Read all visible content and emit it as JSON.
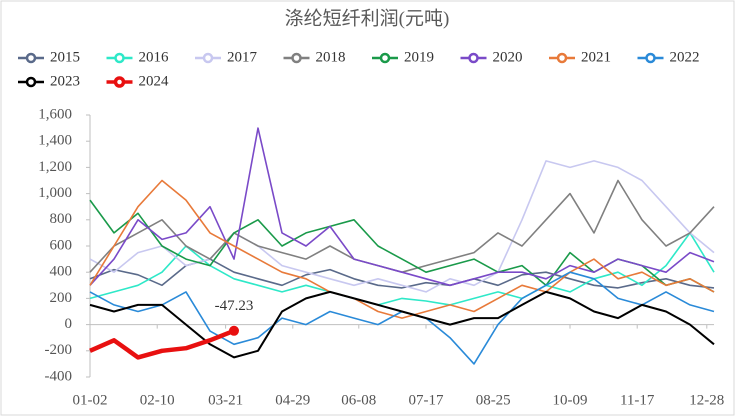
{
  "chart_data": {
    "type": "line",
    "title": "涤纶短纤利润(元吨)",
    "annotation": "-47.23",
    "x": [
      0,
      2,
      4,
      6,
      8,
      10,
      12,
      14,
      16,
      18,
      20,
      22,
      24,
      26,
      28,
      30,
      32,
      34,
      36,
      38,
      40,
      42,
      44,
      46,
      48,
      50,
      52
    ],
    "xlim": [
      0,
      52
    ],
    "xticks": [
      {
        "value": 0,
        "label": "01-02"
      },
      {
        "value": 5.6,
        "label": "02-10"
      },
      {
        "value": 11.3,
        "label": "03-21"
      },
      {
        "value": 16.9,
        "label": "04-29"
      },
      {
        "value": 22.4,
        "label": "06-08"
      },
      {
        "value": 28,
        "label": "07-17"
      },
      {
        "value": 33.6,
        "label": "08-25"
      },
      {
        "value": 40,
        "label": "10-09"
      },
      {
        "value": 45.6,
        "label": "11-17"
      },
      {
        "value": 51.4,
        "label": "12-28"
      }
    ],
    "ylim": [
      -400,
      1600
    ],
    "yticks": [
      {
        "value": 1600,
        "label": "1,600"
      },
      {
        "value": 1400,
        "label": "1,400"
      },
      {
        "value": 1200,
        "label": "1,200"
      },
      {
        "value": 1000,
        "label": "1,000"
      },
      800,
      600,
      400,
      200,
      0,
      -200,
      -400
    ],
    "series": [
      {
        "name": "2015",
        "color": "#5a6a8a",
        "values": [
          350,
          420,
          380,
          300,
          450,
          500,
          400,
          350,
          300,
          380,
          420,
          350,
          300,
          280,
          320,
          300,
          350,
          300,
          380,
          400,
          350,
          300,
          280,
          320,
          350,
          300,
          280
        ]
      },
      {
        "name": "2016",
        "color": "#2ee8c8",
        "values": [
          200,
          250,
          300,
          400,
          600,
          450,
          350,
          300,
          250,
          300,
          250,
          200,
          150,
          200,
          180,
          150,
          200,
          250,
          200,
          300,
          250,
          350,
          400,
          300,
          450,
          700,
          400
        ]
      },
      {
        "name": "2017",
        "color": "#c8c8f0",
        "values": [
          500,
          400,
          550,
          600,
          450,
          500,
          700,
          600,
          450,
          400,
          350,
          300,
          350,
          300,
          250,
          350,
          300,
          400,
          800,
          1250,
          1200,
          1250,
          1200,
          1100,
          900,
          700,
          550
        ]
      },
      {
        "name": "2018",
        "color": "#808080",
        "values": [
          400,
          600,
          700,
          800,
          600,
          500,
          700,
          600,
          550,
          500,
          600,
          500,
          450,
          400,
          450,
          500,
          550,
          700,
          600,
          800,
          1000,
          700,
          1100,
          800,
          600,
          700,
          900
        ]
      },
      {
        "name": "2019",
        "color": "#1a9a4a",
        "values": [
          950,
          700,
          850,
          600,
          500,
          450,
          700,
          800,
          600,
          700,
          750,
          800,
          600,
          500,
          400,
          450,
          500,
          400,
          450,
          300,
          550,
          400,
          500,
          450,
          300,
          350,
          250
        ]
      },
      {
        "name": "2020",
        "color": "#7a4ac8",
        "values": [
          300,
          500,
          800,
          650,
          700,
          900,
          500,
          1500,
          700,
          600,
          750,
          500,
          450,
          400,
          350,
          300,
          350,
          400,
          400,
          350,
          450,
          400,
          500,
          450,
          400,
          550,
          480
        ]
      },
      {
        "name": "2021",
        "color": "#e87a3a",
        "values": [
          300,
          600,
          900,
          1100,
          950,
          700,
          600,
          500,
          400,
          350,
          250,
          200,
          100,
          50,
          100,
          150,
          100,
          200,
          300,
          250,
          400,
          500,
          350,
          400,
          300,
          350,
          250
        ]
      },
      {
        "name": "2022",
        "color": "#2a8ad8",
        "values": [
          250,
          150,
          100,
          150,
          250,
          -50,
          -150,
          -100,
          50,
          0,
          100,
          50,
          0,
          100,
          50,
          -100,
          -300,
          0,
          200,
          300,
          400,
          350,
          200,
          150,
          250,
          150,
          100
        ]
      },
      {
        "name": "2023",
        "color": "#000000",
        "values": [
          150,
          100,
          150,
          150,
          0,
          -150,
          -250,
          -200,
          100,
          200,
          250,
          200,
          150,
          100,
          50,
          0,
          50,
          50,
          150,
          250,
          200,
          100,
          50,
          150,
          100,
          0,
          -150
        ]
      },
      {
        "name": "2024",
        "color": "#e81010",
        "values": [
          -200,
          -120,
          -250,
          -200,
          -180,
          -120,
          -47.23,
          null,
          null,
          null,
          null,
          null,
          null,
          null,
          null,
          null,
          null,
          null,
          null,
          null,
          null,
          null,
          null,
          null,
          null,
          null,
          null
        ]
      }
    ]
  }
}
